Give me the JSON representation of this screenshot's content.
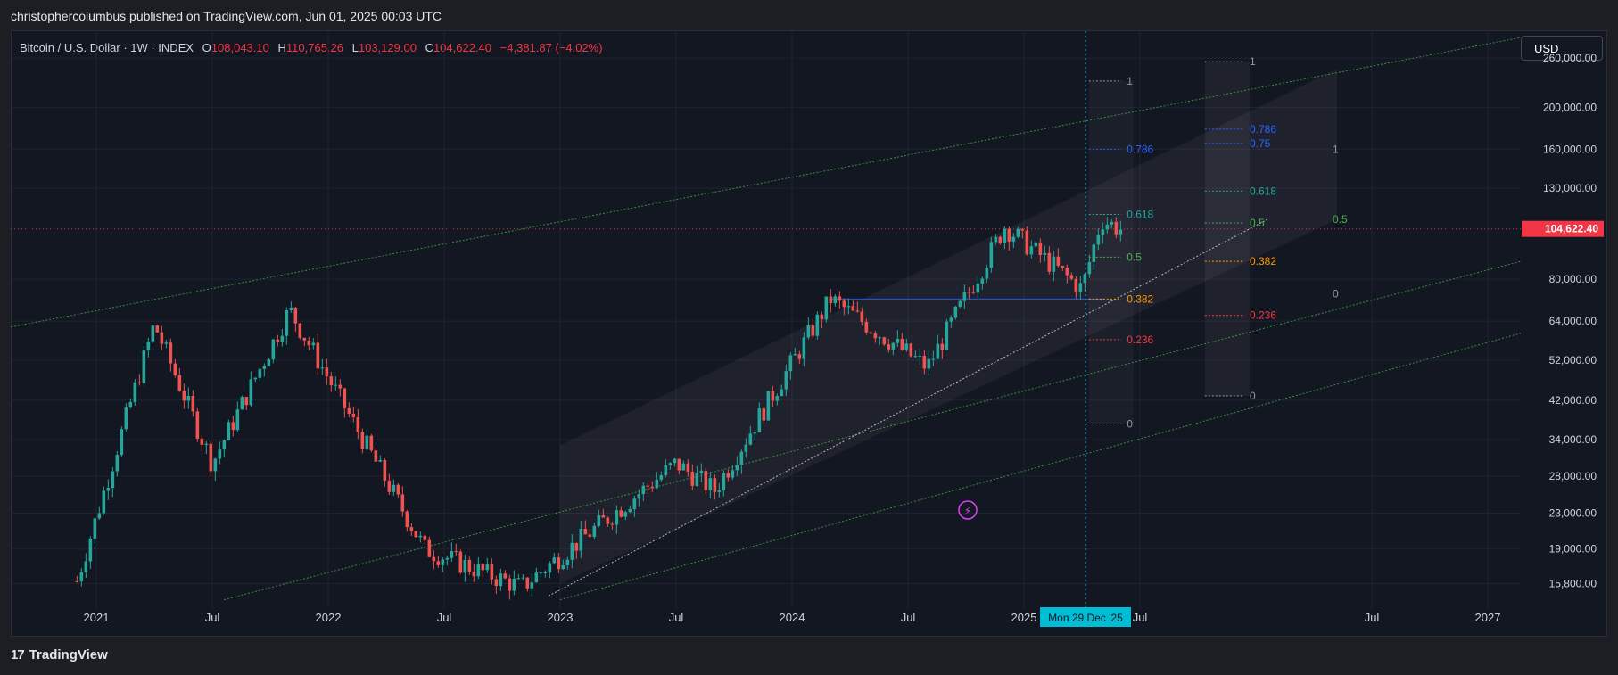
{
  "publisher": "christophercolumbus published on TradingView.com, Jun 01, 2025 00:03 UTC",
  "brand": "TradingView",
  "legend": {
    "symbol": "Bitcoin / U.S. Dollar · 1W · INDEX",
    "open_label": "O",
    "open": "108,043.10",
    "high_label": "H",
    "high": "110,765.26",
    "low_label": "L",
    "low": "103,129.00",
    "close_label": "C",
    "close": "104,622.40",
    "change": "−4,381.87 (−4.02%)"
  },
  "currency": "USD",
  "colors": {
    "background": "#131722",
    "up": "#26a69a",
    "down": "#ef5350",
    "price_tag": "#f23645",
    "channel": "#43a047",
    "fib_blue": "#2962ff",
    "date_tag": "#00bcd4"
  },
  "chart_data": {
    "type": "candlestick",
    "scale": "log",
    "interval": "1W",
    "ylim": [
      14500,
      290000
    ],
    "y_ticks": [
      "260,000.00",
      "200,000.00",
      "160,000.00",
      "130,000.00",
      "80,000.00",
      "64,000.00",
      "52,000.00",
      "42,000.00",
      "34,000.00",
      "28,000.00",
      "23,000.00",
      "19,000.00",
      "15,800.00"
    ],
    "x_ticks": [
      "2021",
      "Jul",
      "2022",
      "Jul",
      "2023",
      "Jul",
      "2024",
      "Jul",
      "2025",
      "Jul",
      "Jul",
      "2027"
    ],
    "last_price": "104,622.40",
    "crosshair_date": "Mon 29 Dec '25",
    "key_points": [
      {
        "date": "2020-12",
        "price": 16000
      },
      {
        "date": "2021-04",
        "price": 63000
      },
      {
        "date": "2021-07",
        "price": 30000
      },
      {
        "date": "2021-11",
        "price": 68000
      },
      {
        "date": "2022-06",
        "price": 19000
      },
      {
        "date": "2022-11",
        "price": 15500
      },
      {
        "date": "2023-07",
        "price": 30000
      },
      {
        "date": "2023-09",
        "price": 26000
      },
      {
        "date": "2024-03",
        "price": 72000
      },
      {
        "date": "2024-08",
        "price": 50000
      },
      {
        "date": "2024-12",
        "price": 106000
      },
      {
        "date": "2025-04",
        "price": 76000
      },
      {
        "date": "2025-05",
        "price": 110000
      },
      {
        "date": "2025-06",
        "price": 104622
      }
    ],
    "fib_levels_a": [
      "1",
      "0.786",
      "0.618",
      "0.5",
      "0.382",
      "0.236",
      "0"
    ],
    "fib_levels_b": [
      "1",
      "0.786",
      "0.75",
      "0.618",
      "0.5",
      "0.382",
      "0.236",
      "0"
    ],
    "fib_levels_c": [
      "1",
      "0.5",
      "0"
    ],
    "badge_icon": "lightning-icon"
  }
}
